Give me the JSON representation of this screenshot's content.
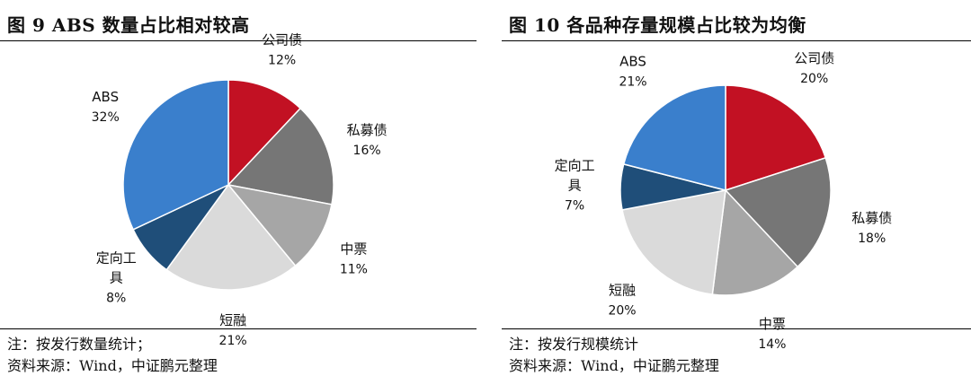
{
  "chart_data": [
    {
      "type": "pie",
      "title": "图 9   ABS 数量占比相对较高",
      "categories": [
        "公司债",
        "私募债",
        "中票",
        "短融",
        "定向工具",
        "ABS"
      ],
      "values": [
        12,
        16,
        11,
        21,
        8,
        32
      ],
      "value_labels": [
        "12%",
        "16%",
        "11%",
        "21%",
        "8%",
        "32%"
      ],
      "label_lines": [
        [
          "公司债"
        ],
        [
          "私募债"
        ],
        [
          "中票"
        ],
        [
          "短融"
        ],
        [
          "定向工",
          "具"
        ],
        [
          "ABS"
        ]
      ],
      "colors": [
        "#C21123",
        "#767676",
        "#A6A6A6",
        "#DADADA",
        "#1F4E79",
        "#3A7FCC"
      ],
      "note": "注：按发行数量统计；",
      "source": "资料来源：Wind，中证鹏元整理"
    },
    {
      "type": "pie",
      "title": "图 10   各品种存量规模占比较为均衡",
      "categories": [
        "公司债",
        "私募债",
        "中票",
        "短融",
        "定向工具",
        "ABS"
      ],
      "values": [
        20,
        18,
        14,
        20,
        7,
        21
      ],
      "value_labels": [
        "20%",
        "18%",
        "14%",
        "20%",
        "7%",
        "21%"
      ],
      "label_lines": [
        [
          "公司债"
        ],
        [
          "私募债"
        ],
        [
          "中票"
        ],
        [
          "短融"
        ],
        [
          "定向工",
          "具"
        ],
        [
          "ABS"
        ]
      ],
      "colors": [
        "#C21123",
        "#767676",
        "#A6A6A6",
        "#DADADA",
        "#1F4E79",
        "#3A7FCC"
      ],
      "note": "注：按发行规模统计",
      "source": "资料来源：Wind，中证鹏元整理"
    }
  ]
}
